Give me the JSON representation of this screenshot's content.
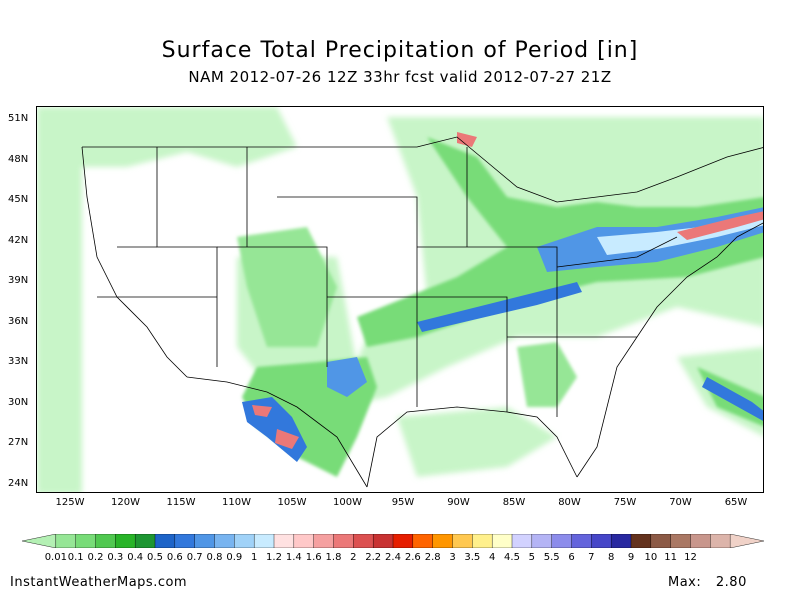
{
  "title": "Surface Total Precipitation of Period [in]",
  "subtitle": "NAM 2012-07-26 12Z 33hr fcst valid 2012-07-27 21Z",
  "lat_labels": [
    "51N",
    "48N",
    "45N",
    "42N",
    "39N",
    "36N",
    "33N",
    "30N",
    "27N",
    "24N"
  ],
  "lon_labels": [
    "125W",
    "120W",
    "115W",
    "110W",
    "105W",
    "100W",
    "95W",
    "90W",
    "85W",
    "80W",
    "75W",
    "70W",
    "65W"
  ],
  "colorbar": {
    "labels": [
      "0.01",
      "0.1",
      "0.2",
      "0.3",
      "0.4",
      "0.5",
      "0.6",
      "0.7",
      "0.8",
      "0.9",
      "1",
      "1.2",
      "1.4",
      "1.6",
      "1.8",
      "2",
      "2.2",
      "2.4",
      "2.6",
      "2.8",
      "3",
      "3.5",
      "4",
      "4.5",
      "5",
      "5.5",
      "6",
      "7",
      "8",
      "9",
      "10",
      "11",
      "12"
    ],
    "colors": [
      "#b4f0b4",
      "#96e696",
      "#78dc78",
      "#50c850",
      "#28b428",
      "#1e9632",
      "#1e64c8",
      "#3278dc",
      "#5096e6",
      "#78b4f0",
      "#a0d2f8",
      "#c8ebff",
      "#ffe1e1",
      "#ffc8c8",
      "#f5a0a0",
      "#eb7878",
      "#dc5050",
      "#c83232",
      "#e61e00",
      "#ff6400",
      "#ff9600",
      "#ffc850",
      "#fff08c",
      "#ffffc8",
      "#d2d2ff",
      "#b4b4f5",
      "#8c8ceb",
      "#6464dc",
      "#4646c8",
      "#2828a0",
      "#64321e",
      "#8c5a46",
      "#aa7864",
      "#c8968c",
      "#dcb4aa",
      "#f0d2c8"
    ]
  },
  "footer": {
    "site": "InstantWeatherMaps.com",
    "max_label": "Max:",
    "max_value": "2.80"
  },
  "map": {
    "lon_range": [
      -127,
      -65
    ],
    "lat_range": [
      23,
      52
    ],
    "background": "#ffffff",
    "land_light": "#c8f5c8",
    "outline_color": "#000000"
  }
}
